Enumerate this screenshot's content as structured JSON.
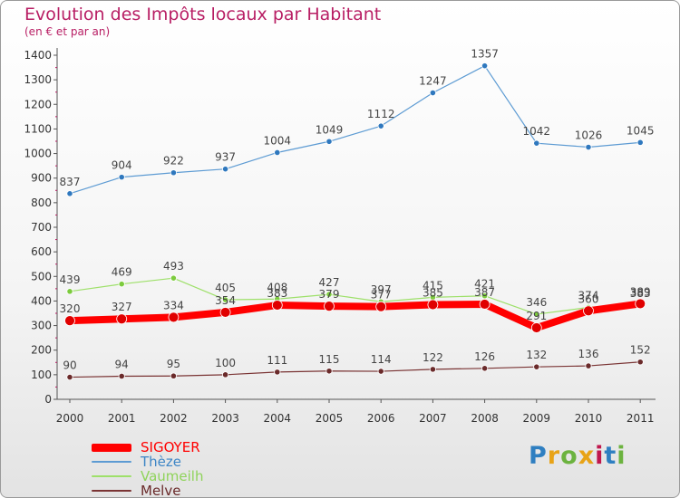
{
  "header": {
    "title": "Evolution des Impôts locaux par Habitant",
    "subtitle": "(en € et par an)"
  },
  "logo": {
    "text": "Proxiti",
    "colors": [
      "#2f7fc1",
      "#e8a317",
      "#6cb33f",
      "#e8a317",
      "#c0174d",
      "#2f7fc1",
      "#6cb33f"
    ]
  },
  "chart_data": {
    "type": "line",
    "title": "Evolution des Impôts locaux par Habitant",
    "subtitle": "(en € et par an)",
    "x": [
      "2000",
      "2001",
      "2002",
      "2003",
      "2004",
      "2005",
      "2006",
      "2007",
      "2008",
      "2009",
      "2010",
      "2011"
    ],
    "ylim": [
      0,
      1400
    ],
    "yticks": [
      0,
      100,
      200,
      300,
      400,
      500,
      600,
      700,
      800,
      900,
      1000,
      1100,
      1200,
      1300,
      1400
    ],
    "grid": false,
    "legend_position": "bottom-left",
    "series": [
      {
        "name": "SIGOYER",
        "color": "#ff0000",
        "values": [
          320,
          327,
          334,
          354,
          383,
          379,
          377,
          385,
          387,
          291,
          360,
          389
        ]
      },
      {
        "name": "Thèze",
        "color": "#3e86c6",
        "values": [
          837,
          904,
          922,
          937,
          1004,
          1049,
          1112,
          1247,
          1357,
          1042,
          1026,
          1045
        ]
      },
      {
        "name": "Vaumeilh",
        "color": "#8fd35a",
        "values": [
          439,
          469,
          493,
          405,
          408,
          427,
          397,
          415,
          421,
          346,
          374,
          383
        ]
      },
      {
        "name": "Melve",
        "color": "#6a2a2a",
        "values": [
          90,
          94,
          95,
          100,
          111,
          115,
          114,
          122,
          126,
          132,
          136,
          152
        ]
      }
    ]
  }
}
